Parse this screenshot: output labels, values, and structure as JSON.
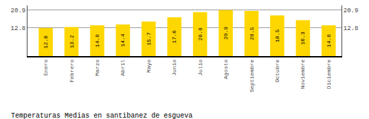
{
  "chart_data": {
    "type": "bar",
    "title": "Temperaturas Medias en santibanez de esgueva",
    "categories": [
      "Enero",
      "Febrero",
      "Marzo",
      "Abril",
      "Mayo",
      "Junio",
      "Julio",
      "Agosto",
      "Septiembre",
      "Octubre",
      "Noviembre",
      "Diciembre"
    ],
    "values": [
      12.8,
      13.2,
      14.0,
      14.4,
      15.7,
      17.6,
      20.0,
      20.9,
      20.5,
      18.5,
      16.3,
      14.0
    ],
    "value_labels": [
      "12.8",
      "13.2",
      "14.0",
      "14.4",
      "15.7",
      "17.6",
      "20.0",
      "20.9",
      "20.5",
      "18.5",
      "16.3",
      "14.0"
    ],
    "color": "#FFD700",
    "ylim": [
      0,
      23.0
    ],
    "yticks": [
      12.8,
      20.9
    ],
    "grid": true,
    "data_labels": true
  }
}
